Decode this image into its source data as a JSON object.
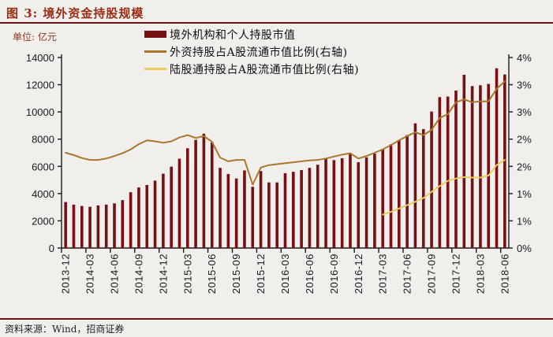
{
  "title": "图 3: 境外资金持股规模",
  "unit_label": "单位: 亿元",
  "source": "资料来源：Wind，招商证券",
  "colors": {
    "bar": "#761013",
    "foreign_line": "#a9772e",
    "hk_line": "#ecca5c",
    "title_red": "#9a2c12",
    "rule": "#6d1310",
    "axis": "#1a1a1a",
    "background": "#f1efec"
  },
  "legend": [
    {
      "label": "境外机构和个人持股市值",
      "type": "bar",
      "color": "#761013"
    },
    {
      "label": "外资持股占A股流通市值比例(右轴)",
      "type": "line",
      "color": "#a9772e"
    },
    {
      "label": "陆股通持股占A股流通市值比例(右轴)",
      "type": "line",
      "color": "#ecca5c"
    }
  ],
  "chart_data": {
    "type": "bar",
    "title": "境外资金持股规模",
    "x_monthly": [
      "2013-12",
      "2014-01",
      "2014-02",
      "2014-03",
      "2014-04",
      "2014-05",
      "2014-06",
      "2014-07",
      "2014-08",
      "2014-09",
      "2014-10",
      "2014-11",
      "2014-12",
      "2015-01",
      "2015-02",
      "2015-03",
      "2015-04",
      "2015-05",
      "2015-06",
      "2015-07",
      "2015-08",
      "2015-09",
      "2015-10",
      "2015-11",
      "2015-12",
      "2016-01",
      "2016-02",
      "2016-03",
      "2016-04",
      "2016-05",
      "2016-06",
      "2016-07",
      "2016-08",
      "2016-09",
      "2016-10",
      "2016-11",
      "2016-12",
      "2017-01",
      "2017-02",
      "2017-03",
      "2017-04",
      "2017-05",
      "2017-06",
      "2017-07",
      "2017-08",
      "2017-09",
      "2017-10",
      "2017-11",
      "2017-12",
      "2018-01",
      "2018-02",
      "2018-03",
      "2018-04",
      "2018-05",
      "2018-06"
    ],
    "series": [
      {
        "name": "境外机构和个人持股市值",
        "axis": "left",
        "type": "bar",
        "unit": "亿元",
        "values": [
          3380,
          3190,
          3090,
          3030,
          3130,
          3190,
          3280,
          3520,
          4100,
          4450,
          4630,
          4950,
          5460,
          5980,
          6560,
          7330,
          7950,
          8400,
          7760,
          5890,
          5440,
          5110,
          5700,
          4500,
          5660,
          4820,
          4820,
          5500,
          5600,
          5730,
          5890,
          6120,
          6560,
          6460,
          6600,
          6940,
          6310,
          6660,
          6940,
          7290,
          7620,
          7910,
          8300,
          9160,
          8740,
          10030,
          11090,
          11130,
          11570,
          12730,
          11900,
          11960,
          12060,
          13210,
          12750
        ]
      },
      {
        "name": "外资持股占A股流通市值比例(右轴)",
        "axis": "right",
        "type": "line",
        "unit": "%",
        "values": [
          2.0,
          1.95,
          1.89,
          1.85,
          1.85,
          1.88,
          1.93,
          1.99,
          2.07,
          2.18,
          2.26,
          2.24,
          2.21,
          2.24,
          2.32,
          2.37,
          2.31,
          2.35,
          2.23,
          1.9,
          1.82,
          1.85,
          1.85,
          1.33,
          1.69,
          1.74,
          1.76,
          1.78,
          1.8,
          1.82,
          1.84,
          1.85,
          1.88,
          1.92,
          1.96,
          1.99,
          1.88,
          1.93,
          2.0,
          2.07,
          2.16,
          2.26,
          2.35,
          2.43,
          2.37,
          2.48,
          2.73,
          2.81,
          3.06,
          3.12,
          3.06,
          3.08,
          3.08,
          3.34,
          3.5
        ]
      },
      {
        "name": "陆股通持股占A股流通市值比例(右轴)",
        "axis": "right",
        "type": "line",
        "unit": "%",
        "values": [
          null,
          null,
          null,
          null,
          null,
          null,
          null,
          null,
          null,
          null,
          null,
          null,
          null,
          null,
          null,
          null,
          null,
          null,
          null,
          null,
          null,
          null,
          null,
          null,
          null,
          null,
          null,
          null,
          null,
          null,
          null,
          null,
          null,
          null,
          null,
          null,
          null,
          null,
          null,
          0.7,
          0.76,
          0.83,
          0.9,
          0.97,
          1.05,
          1.18,
          1.3,
          1.41,
          1.46,
          1.49,
          1.48,
          1.48,
          1.52,
          1.74,
          1.85
        ]
      }
    ],
    "left_axis": {
      "min": 0,
      "max": 14000,
      "tick_labels": [
        "0",
        "2000",
        "4000",
        "6000",
        "8000",
        "10000",
        "12000",
        "14000"
      ]
    },
    "right_axis": {
      "min": 0,
      "max": 4,
      "tick_labels": [
        "0%",
        "1%",
        "1%",
        "2%",
        "2%",
        "3%",
        "3%",
        "4%"
      ]
    },
    "x_tick_labels": [
      "2013-12",
      "2014-03",
      "2014-06",
      "2014-09",
      "2014-12",
      "2015-03",
      "2015-06",
      "2015-09",
      "2015-12",
      "2016-03",
      "2016-06",
      "2016-09",
      "2016-12",
      "2017-03",
      "2017-06",
      "2017-09",
      "2017-12",
      "2018-03",
      "2018-06"
    ],
    "grid": false,
    "legend_position": "top-center"
  }
}
